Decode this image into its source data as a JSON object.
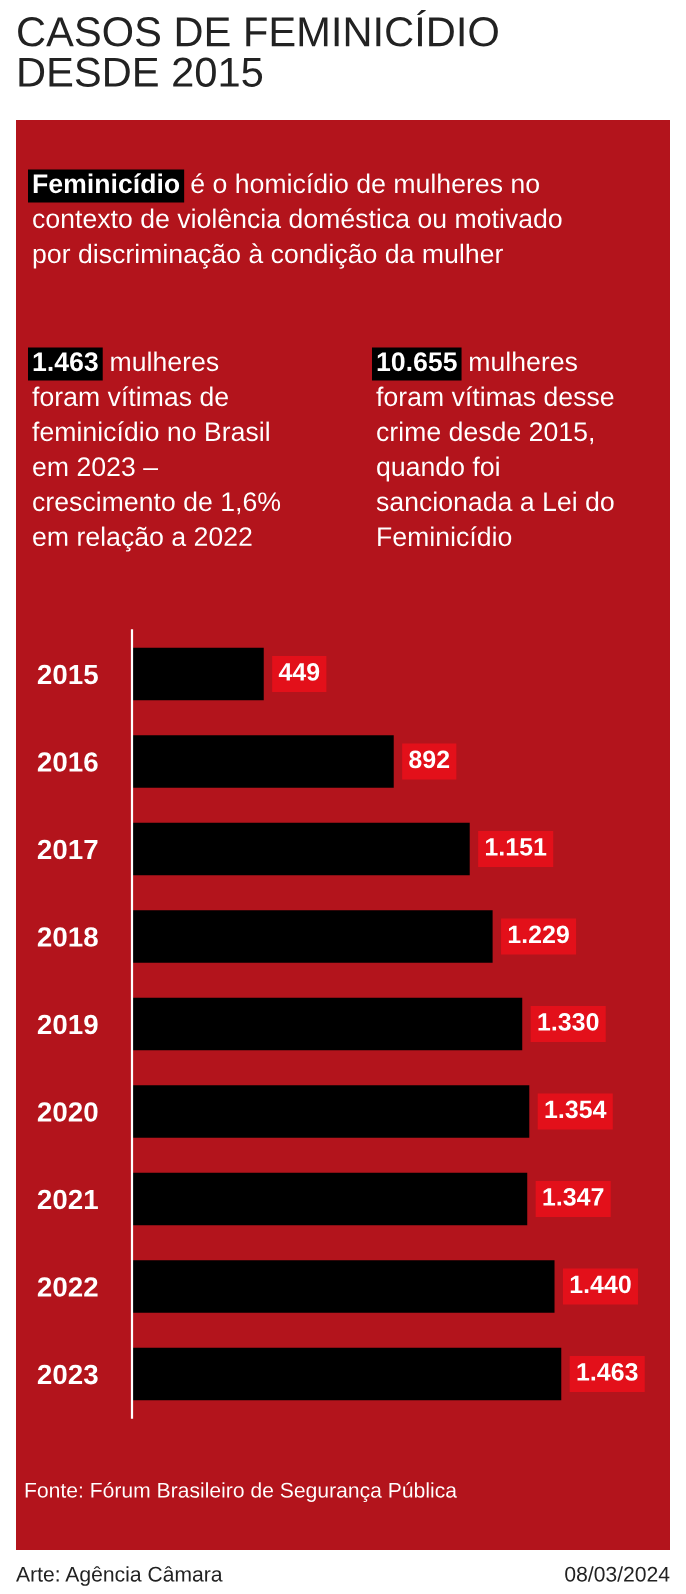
{
  "chart_data": {
    "type": "bar",
    "orientation": "horizontal",
    "title": "CASOS DE FEMINICÍDIO\nDESDE 2015",
    "categories": [
      "2015",
      "2016",
      "2017",
      "2018",
      "2019",
      "2020",
      "2021",
      "2022",
      "2023"
    ],
    "values": [
      449,
      892,
      1151,
      1229,
      1330,
      1354,
      1347,
      1440,
      1463
    ],
    "value_labels": [
      "449",
      "892",
      "1.151",
      "1.229",
      "1.330",
      "1.354",
      "1.347",
      "1.440",
      "1.463"
    ],
    "color": "#000000",
    "grid": false,
    "legend": false,
    "annotations": [
      "Feminicídio é o homicídio de mulheres no\ncontexto de violência doméstica ou motivado\npor discriminação à condição da mulher",
      "1.463 mulheres\nforam vítimas de\nfeminicídio no Brasil\nem 2023 –\ncrescimento de 1,6%\nem relação a 2022",
      "10.655 mulheres\nforam vítimas desse\ncrime desde 2015,\nquando foi\nsancionada a Lei do\nFeminicídio",
      "Fonte: Fórum Brasileiro de Segurança Pública",
      "Arte: Agência Câmara",
      "08/03/2024"
    ]
  }
}
